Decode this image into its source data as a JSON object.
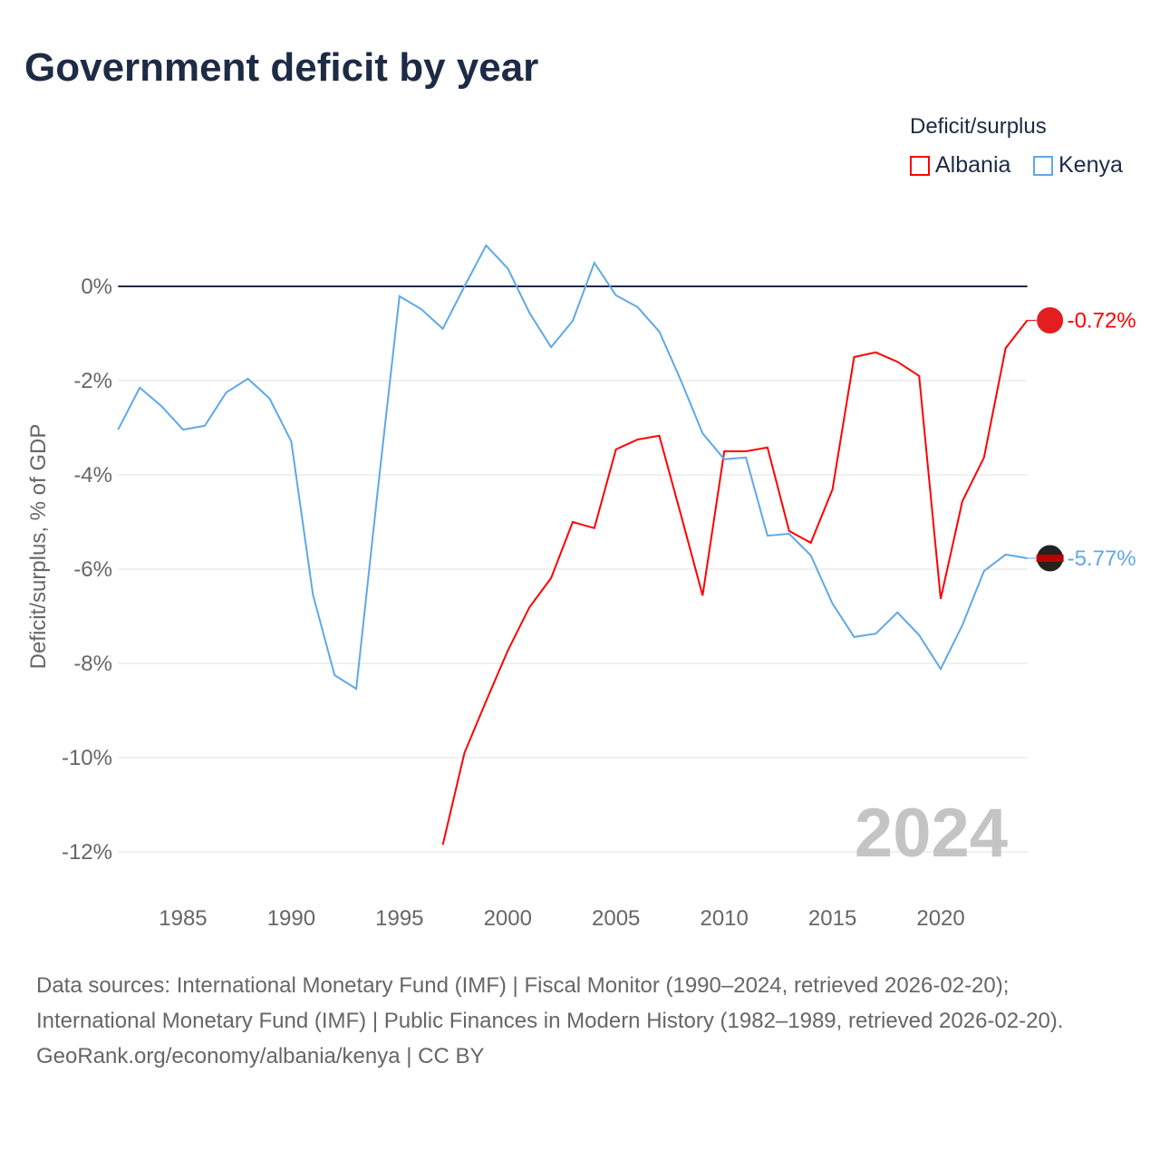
{
  "chart_data": {
    "type": "line",
    "title": "Government deficit by year",
    "ylabel": "Deficit/surplus, % of GDP",
    "xlabel": "",
    "xlim": [
      1982,
      2024
    ],
    "ylim": [
      -13,
      1.2
    ],
    "x_ticks": [
      1985,
      1990,
      1995,
      2000,
      2005,
      2010,
      2015,
      2020
    ],
    "x_tick_labels": [
      "1985",
      "1990",
      "1995",
      "2000",
      "2005",
      "2010",
      "2015",
      "2020"
    ],
    "y_ticks": [
      0,
      -2,
      -4,
      -6,
      -8,
      -10,
      -12
    ],
    "y_tick_labels": [
      "0%",
      "-2%",
      "-4%",
      "-6%",
      "-8%",
      "-10%",
      "-12%"
    ],
    "grid": true,
    "legend_title": "Deficit/surplus",
    "legend_position": "top-right",
    "year_watermark": "2024",
    "series": [
      {
        "name": "Albania",
        "color": "#ff0000",
        "end_label": "-0.72%",
        "x": [
          1997,
          1998,
          1999,
          2000,
          2001,
          2002,
          2003,
          2004,
          2005,
          2006,
          2007,
          2008,
          2009,
          2010,
          2011,
          2012,
          2013,
          2014,
          2015,
          2016,
          2017,
          2018,
          2019,
          2020,
          2021,
          2022,
          2023,
          2024
        ],
        "values": [
          -11.85,
          -9.9,
          -8.8,
          -7.73,
          -6.81,
          -6.19,
          -5.0,
          -5.13,
          -3.46,
          -3.25,
          -3.17,
          -4.85,
          -6.56,
          -3.5,
          -3.5,
          -3.42,
          -5.19,
          -5.44,
          -4.31,
          -1.5,
          -1.4,
          -1.6,
          -1.9,
          -6.63,
          -4.56,
          -3.63,
          -1.31,
          -0.72
        ]
      },
      {
        "name": "Kenya",
        "color": "#5ea8e8",
        "end_label": "-5.77%",
        "x": [
          1982,
          1983,
          1984,
          1985,
          1986,
          1987,
          1988,
          1989,
          1990,
          1991,
          1992,
          1993,
          1994,
          1995,
          1996,
          1997,
          1998,
          1999,
          2000,
          2001,
          2002,
          2003,
          2004,
          2005,
          2006,
          2007,
          2008,
          2009,
          2010,
          2011,
          2012,
          2013,
          2014,
          2015,
          2016,
          2017,
          2018,
          2019,
          2020,
          2021,
          2022,
          2023,
          2024
        ],
        "values": [
          -3.04,
          -2.15,
          -2.54,
          -3.04,
          -2.96,
          -2.25,
          -1.96,
          -2.38,
          -3.29,
          -6.54,
          -8.25,
          -8.54,
          -4.3,
          -0.21,
          -0.48,
          -0.9,
          0.0,
          0.87,
          0.38,
          -0.56,
          -1.29,
          -0.73,
          0.5,
          -0.19,
          -0.44,
          -0.96,
          -2.0,
          -3.12,
          -3.67,
          -3.63,
          -5.29,
          -5.25,
          -5.71,
          -6.73,
          -7.44,
          -7.37,
          -6.92,
          -7.4,
          -8.12,
          -7.19,
          -6.04,
          -5.69,
          -5.77
        ]
      }
    ]
  },
  "footer": {
    "sources": "Data sources: International Monetary Fund (IMF) | Fiscal Monitor (1990–2024, retrieved 2026-02-20); International Monetary Fund (IMF) | Public Finances in Modern History (1982–1989, retrieved 2026-02-20).",
    "credit": "GeoRank.org/economy/albania/kenya | CC BY"
  }
}
